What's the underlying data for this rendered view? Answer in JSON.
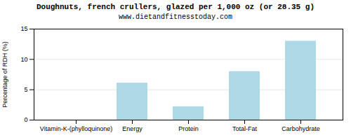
{
  "chart_data": {
    "type": "bar",
    "title": "Doughnuts, french crullers, glazed per 1,000 oz (or 28.35 g)",
    "subtitle": "www.dietandfitnesstoday.com",
    "categories": [
      "Vitamin-K-(phylloquinone)",
      "Energy",
      "Protein",
      "Total-Fat",
      "Carbohydrate"
    ],
    "values": [
      0,
      6.1,
      2.2,
      8.0,
      13.0
    ],
    "color": "#add8e6",
    "ylabel": "Percentage of RDH (%)",
    "ylim": [
      0,
      15
    ],
    "yticks": [
      0,
      5,
      10,
      15
    ],
    "grid": true
  }
}
